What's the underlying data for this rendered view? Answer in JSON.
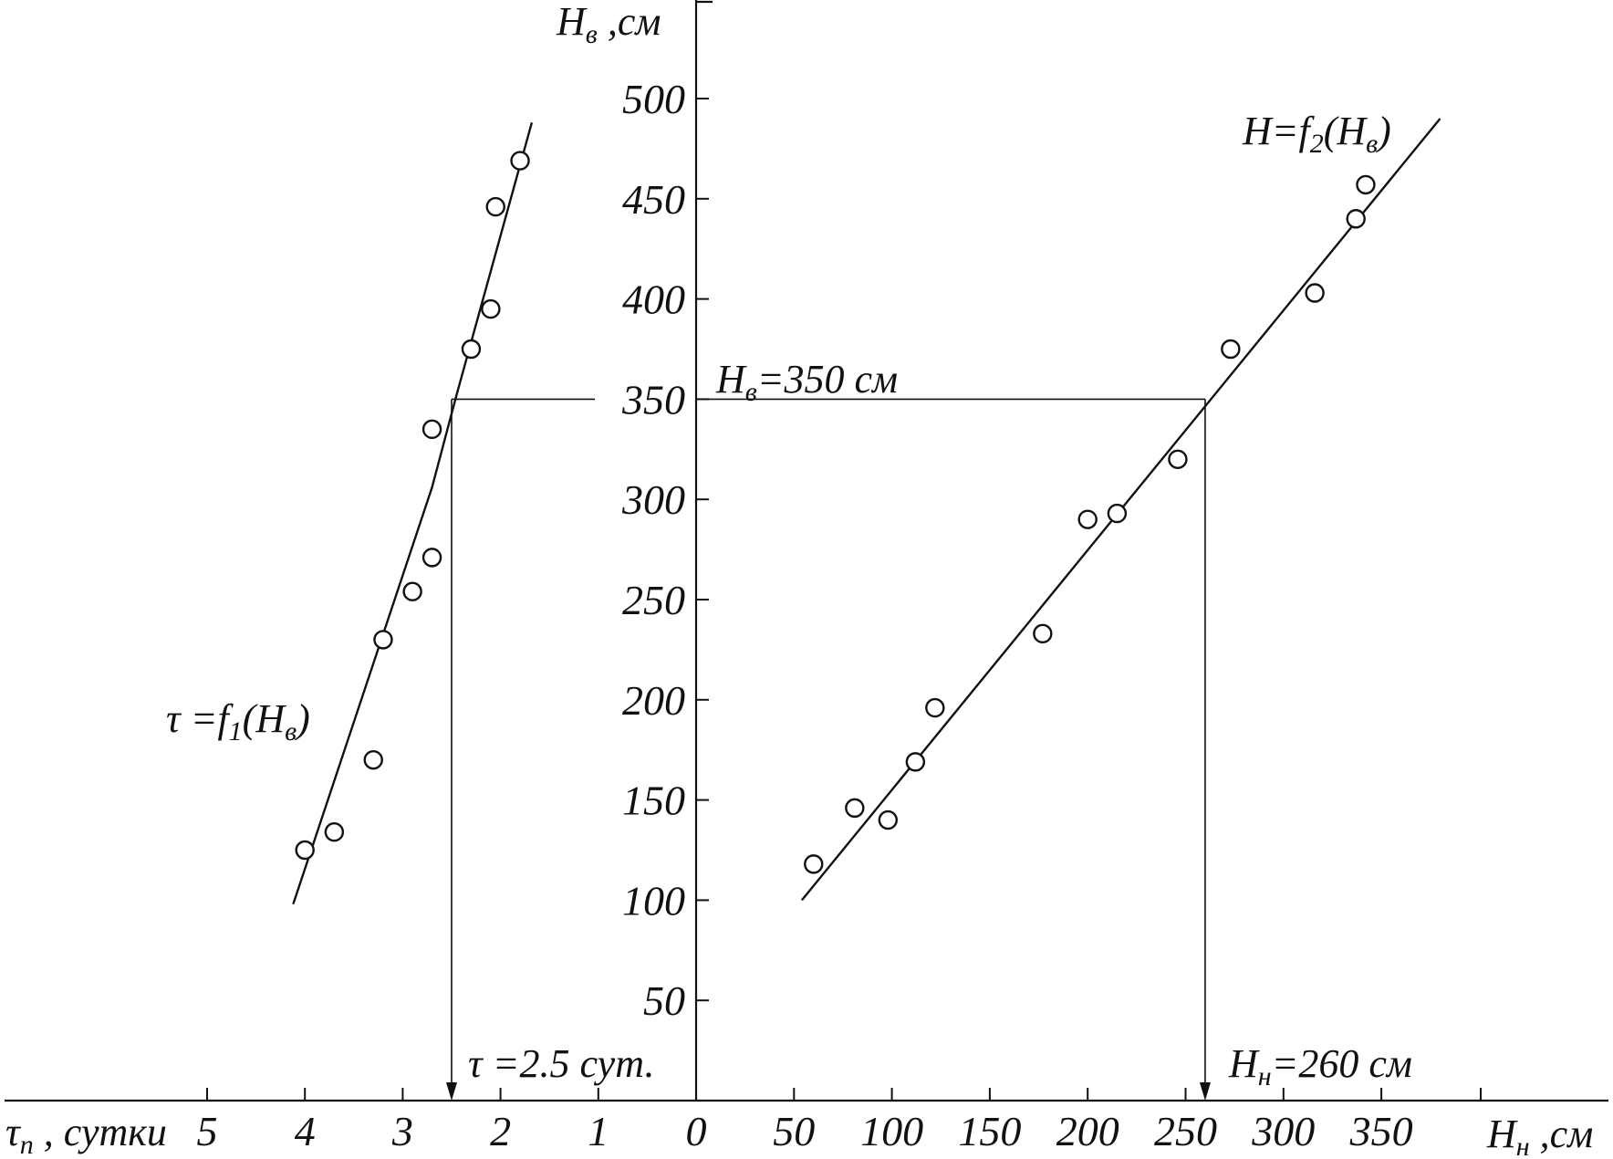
{
  "chart_data": {
    "type": "scatter",
    "y_axis": {
      "label_main": "H",
      "label_sub": "в",
      "label_unit": " ,см",
      "ticks": [
        "50",
        "100",
        "150",
        "200",
        "250",
        "300",
        "350",
        "400",
        "450",
        "500"
      ],
      "range": [
        0,
        500
      ]
    },
    "x_axis_left": {
      "label_main": "τ",
      "label_sub": "n",
      "label_unit": " , сутки",
      "ticks": [
        "5",
        "4",
        "3",
        "2",
        "1",
        "0"
      ],
      "range": [
        0,
        5
      ]
    },
    "x_axis_right": {
      "label_main": "H",
      "label_sub": "н",
      "label_unit": " ,см",
      "ticks": [
        "50",
        "100",
        "150",
        "200",
        "250",
        "300",
        "350"
      ],
      "range": [
        0,
        380
      ]
    },
    "series": [
      {
        "name": "τ =f1(Hв)",
        "name_parts": {
          "pre": "τ =f",
          "sub1": "1",
          "mid": "(H",
          "sub2": "в",
          "post": ")"
        },
        "points": [
          {
            "x": 4.0,
            "y": 125
          },
          {
            "x": 3.7,
            "y": 134
          },
          {
            "x": 3.3,
            "y": 170
          },
          {
            "x": 3.2,
            "y": 230
          },
          {
            "x": 2.9,
            "y": 254
          },
          {
            "x": 2.7,
            "y": 271
          },
          {
            "x": 2.7,
            "y": 335
          },
          {
            "x": 2.3,
            "y": 375
          },
          {
            "x": 2.1,
            "y": 395
          },
          {
            "x": 2.05,
            "y": 446
          },
          {
            "x": 1.8,
            "y": 469
          }
        ],
        "fit_line": [
          {
            "x": 4.12,
            "y": 98
          },
          {
            "x": 2.7,
            "y": 306
          },
          {
            "x": 2.45,
            "y": 352
          },
          {
            "x": 1.68,
            "y": 488
          }
        ]
      },
      {
        "name": "H=f2(Hв)",
        "name_parts": {
          "pre": "H=f",
          "sub1": "2",
          "mid": "(H",
          "sub2": "в",
          "post": ")"
        },
        "points": [
          {
            "x": 60,
            "y": 118
          },
          {
            "x": 81,
            "y": 146
          },
          {
            "x": 98,
            "y": 140
          },
          {
            "x": 112,
            "y": 169
          },
          {
            "x": 122,
            "y": 196
          },
          {
            "x": 177,
            "y": 233
          },
          {
            "x": 200,
            "y": 290
          },
          {
            "x": 215,
            "y": 293
          },
          {
            "x": 246,
            "y": 320
          },
          {
            "x": 273,
            "y": 375
          },
          {
            "x": 316,
            "y": 403
          },
          {
            "x": 337,
            "y": 440
          },
          {
            "x": 342,
            "y": 457
          }
        ],
        "fit_line": [
          {
            "x": 54,
            "y": 100
          },
          {
            "x": 380,
            "y": 490
          }
        ]
      }
    ],
    "annotations": {
      "hv": {
        "pre": "H",
        "sub": "в",
        "post": "=350 см",
        "y": 350
      },
      "tau": {
        "text": "τ =2.5 сут.",
        "x": 2.5
      },
      "hn": {
        "pre": "H",
        "sub": "н",
        "post": "=260 см",
        "x": 260
      }
    },
    "grid": false,
    "legend": "none"
  }
}
